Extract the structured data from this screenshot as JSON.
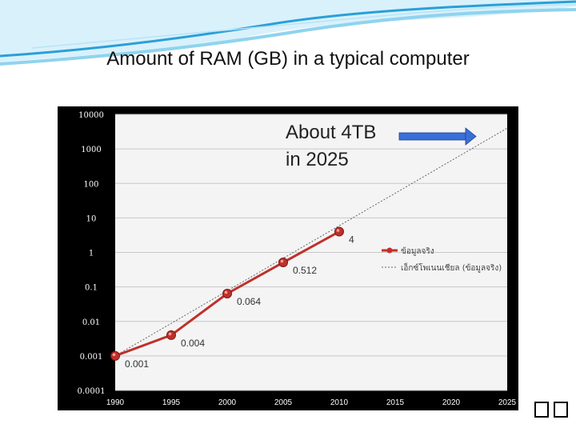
{
  "slide": {
    "title": "Amount of RAM (GB) in a typical computer",
    "footer_glyphs": "��"
  },
  "colors": {
    "chart_bg": "#000000",
    "plot_bg": "#f4f4f4",
    "grid": "#c8c8c8",
    "series_actual": "#c0302a",
    "series_trend": "#666666",
    "arrow_fill": "#3b6fd8",
    "header_wave_1": "#2a9fd8",
    "header_wave_2": "#8fd3ef"
  },
  "chart_data": {
    "type": "line",
    "yscale": "log",
    "x_ticks": [
      "1990",
      "1995",
      "2000",
      "2005",
      "2010",
      "2015",
      "2020",
      "2025"
    ],
    "x_range": [
      1990,
      2025
    ],
    "y_ticks": [
      "10000",
      "1000",
      "100",
      "10",
      "1",
      "0.1",
      "0.01",
      "0.001",
      "0.0001"
    ],
    "y_range": [
      0.0001,
      10000
    ],
    "series": [
      {
        "name": "ข้อมูลจริง",
        "style": "solid-markers",
        "x": [
          1990,
          1995,
          2000,
          2005,
          2010
        ],
        "y": [
          0.001,
          0.004,
          0.064,
          0.512,
          4
        ],
        "labels": [
          "0.001",
          "0.004",
          "0.064",
          "0.512",
          "4"
        ]
      },
      {
        "name": "เอ็กซ์โพเนนเชียล (ข้อมูลจริง)",
        "style": "dotted",
        "x": [
          1990,
          2025
        ],
        "y": [
          0.001,
          4000
        ]
      }
    ],
    "annotation": {
      "lines": [
        "About 4TB",
        "in 2025"
      ]
    },
    "legend": "right"
  }
}
